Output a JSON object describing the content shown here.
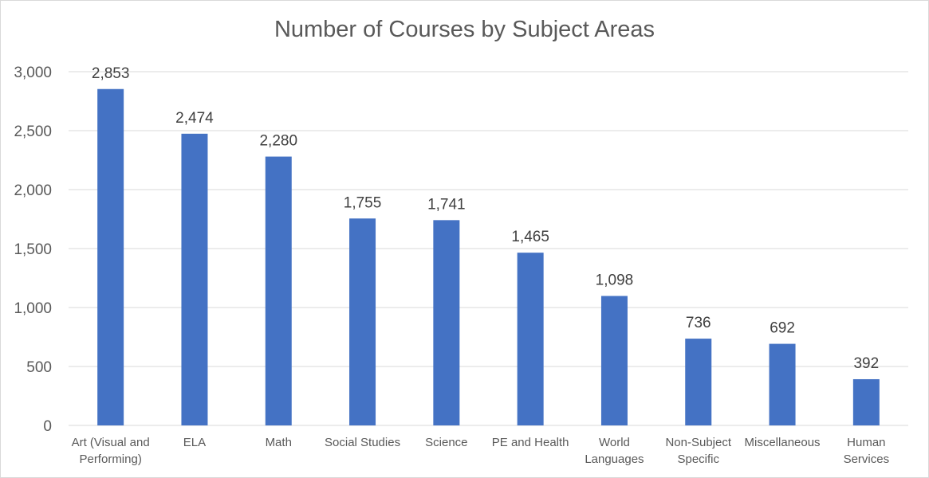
{
  "chart_data": {
    "type": "bar",
    "title": "Number of Courses by Subject Areas",
    "categories": [
      [
        "Art (Visual and",
        "Performing)"
      ],
      [
        "ELA"
      ],
      [
        "Math"
      ],
      [
        "Social Studies"
      ],
      [
        "Science"
      ],
      [
        "PE and Health"
      ],
      [
        "World",
        "Languages"
      ],
      [
        "Non-Subject",
        "Specific"
      ],
      [
        "Miscellaneous"
      ],
      [
        "Human",
        "Services"
      ]
    ],
    "values": [
      2853,
      2474,
      2280,
      1755,
      1741,
      1465,
      1098,
      736,
      692,
      392
    ],
    "data_labels": [
      "2,853",
      "2,474",
      "2,280",
      "1,755",
      "1,741",
      "1,465",
      "1,098",
      "736",
      "692",
      "392"
    ],
    "y_ticks": [
      0,
      500,
      1000,
      1500,
      2000,
      2500,
      3000
    ],
    "y_tick_labels": [
      "0",
      "500",
      "1,000",
      "1,500",
      "2,000",
      "2,500",
      "3,000"
    ],
    "ylim": [
      0,
      3000
    ],
    "grid": true,
    "legend": "none",
    "xlabel": "",
    "ylabel": "",
    "colors": {
      "bar": "#4472c4",
      "grid": "#d9d9d9",
      "text": "#595959",
      "label": "#404040"
    }
  }
}
